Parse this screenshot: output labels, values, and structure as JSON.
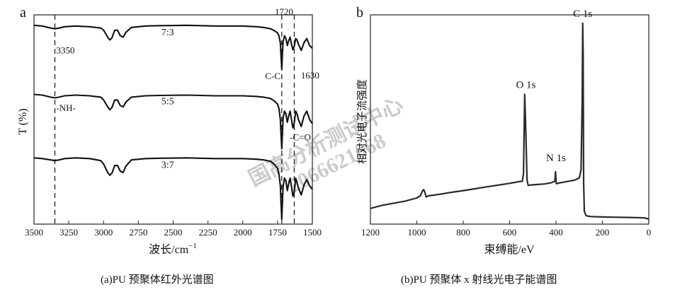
{
  "captions": {
    "a": "(a)PU 预聚体红外光谱图",
    "b": "(b)PU 预聚体 x 射线光电子能谱图"
  },
  "watermark": {
    "line1": "国高分析测试中心",
    "line2": "2066621668"
  },
  "chart_data": [
    {
      "panel": "a",
      "type": "line",
      "xlabel": "波长/cm",
      "xlabel_sup": "−1",
      "ylabel": "T (%)",
      "xlim": [
        3500,
        1500
      ],
      "ylim": [
        0,
        3
      ],
      "x_reversed": true,
      "xticks": [
        3500,
        3250,
        3000,
        2750,
        2500,
        2250,
        2000,
        1750,
        1500
      ],
      "reference_lines": [
        3350,
        1720,
        1630
      ],
      "series": [
        {
          "name": "7:3",
          "label_x": 2540,
          "x": [
            3500,
            3440,
            3380,
            3350,
            3320,
            3280,
            3200,
            3100,
            3020,
            3000,
            2970,
            2955,
            2940,
            2920,
            2900,
            2880,
            2860,
            2840,
            2800,
            2700,
            2600,
            2400,
            2200,
            2000,
            1900,
            1850,
            1800,
            1770,
            1750,
            1740,
            1730,
            1725,
            1720,
            1715,
            1710,
            1700,
            1690,
            1680,
            1670,
            1660,
            1650,
            1640,
            1630,
            1620,
            1610,
            1600,
            1580,
            1560,
            1540,
            1520,
            1500
          ],
          "y": [
            2.85,
            2.84,
            2.81,
            2.8,
            2.81,
            2.83,
            2.84,
            2.83,
            2.81,
            2.78,
            2.68,
            2.64,
            2.67,
            2.78,
            2.78,
            2.7,
            2.68,
            2.75,
            2.82,
            2.84,
            2.845,
            2.85,
            2.84,
            2.84,
            2.83,
            2.82,
            2.8,
            2.77,
            2.74,
            2.7,
            2.6,
            2.4,
            2.22,
            2.45,
            2.62,
            2.7,
            2.66,
            2.56,
            2.63,
            2.68,
            2.58,
            2.5,
            2.55,
            2.66,
            2.64,
            2.58,
            2.49,
            2.6,
            2.66,
            2.56,
            2.52
          ]
        },
        {
          "name": "5:5",
          "label_x": 2540,
          "x": [
            3500,
            3440,
            3380,
            3350,
            3320,
            3280,
            3200,
            3100,
            3020,
            3000,
            2970,
            2955,
            2940,
            2920,
            2900,
            2880,
            2860,
            2840,
            2800,
            2700,
            2600,
            2400,
            2200,
            2000,
            1900,
            1850,
            1800,
            1770,
            1750,
            1740,
            1730,
            1725,
            1720,
            1715,
            1710,
            1700,
            1690,
            1680,
            1670,
            1660,
            1650,
            1640,
            1630,
            1620,
            1610,
            1600,
            1580,
            1560,
            1540,
            1520,
            1500
          ],
          "y": [
            1.86,
            1.85,
            1.82,
            1.81,
            1.82,
            1.84,
            1.85,
            1.84,
            1.82,
            1.78,
            1.68,
            1.64,
            1.67,
            1.78,
            1.78,
            1.7,
            1.68,
            1.75,
            1.82,
            1.84,
            1.845,
            1.85,
            1.84,
            1.84,
            1.83,
            1.82,
            1.8,
            1.76,
            1.72,
            1.66,
            1.5,
            1.28,
            1.08,
            1.3,
            1.52,
            1.62,
            1.58,
            1.46,
            1.55,
            1.62,
            1.5,
            1.38,
            1.45,
            1.62,
            1.58,
            1.5,
            1.4,
            1.55,
            1.62,
            1.5,
            1.44
          ]
        },
        {
          "name": "3:7",
          "label_x": 2540,
          "x": [
            3500,
            3440,
            3380,
            3350,
            3320,
            3280,
            3200,
            3100,
            3020,
            3000,
            2970,
            2955,
            2940,
            2920,
            2900,
            2880,
            2860,
            2840,
            2800,
            2700,
            2600,
            2400,
            2200,
            2000,
            1900,
            1850,
            1800,
            1770,
            1750,
            1740,
            1730,
            1725,
            1720,
            1715,
            1710,
            1700,
            1690,
            1680,
            1670,
            1660,
            1650,
            1640,
            1630,
            1620,
            1610,
            1600,
            1580,
            1560,
            1540,
            1520,
            1500
          ],
          "y": [
            0.95,
            0.94,
            0.92,
            0.91,
            0.92,
            0.94,
            0.95,
            0.94,
            0.91,
            0.86,
            0.74,
            0.7,
            0.73,
            0.84,
            0.84,
            0.76,
            0.74,
            0.83,
            0.92,
            0.94,
            0.945,
            0.95,
            0.94,
            0.94,
            0.93,
            0.92,
            0.9,
            0.85,
            0.8,
            0.72,
            0.55,
            0.3,
            0.07,
            0.32,
            0.54,
            0.66,
            0.62,
            0.48,
            0.58,
            0.66,
            0.54,
            0.4,
            0.46,
            0.66,
            0.6,
            0.52,
            0.42,
            0.56,
            0.64,
            0.55,
            0.5
          ]
        }
      ],
      "annotations": [
        {
          "text": "3350",
          "x": 3340,
          "y": 2.45
        },
        {
          "text": "-NH-",
          "x": 3340,
          "y": 1.62
        },
        {
          "text": "1720",
          "x": 1770,
          "y": 3.0
        },
        {
          "text": "C-C",
          "x": 1840,
          "y": 2.08
        },
        {
          "text": "1630",
          "x": 1582,
          "y": 2.09
        },
        {
          "text": "-C=O",
          "x": 1662,
          "y": 1.2
        }
      ]
    },
    {
      "panel": "b",
      "type": "line",
      "xlabel": "束缚能/eV",
      "ylabel": "相对光电子流强度",
      "xlim": [
        1200,
        0
      ],
      "x_reversed": true,
      "ylim": [
        0,
        100
      ],
      "xticks": [
        1200,
        1000,
        800,
        600,
        400,
        200,
        0
      ],
      "series": [
        {
          "name": "",
          "x": [
            1200,
            1150,
            1100,
            1050,
            1000,
            985,
            975,
            970,
            965,
            960,
            950,
            900,
            850,
            800,
            750,
            700,
            650,
            600,
            560,
            545,
            540,
            535,
            530,
            525,
            520,
            500,
            450,
            420,
            405,
            402,
            399,
            396,
            390,
            350,
            320,
            300,
            292,
            287,
            285,
            283,
            281,
            278,
            270,
            250,
            200,
            150,
            100,
            50,
            20,
            0
          ],
          "y": [
            7.5,
            9,
            10,
            11,
            12.5,
            13.5,
            16,
            16.5,
            15,
            13,
            13.5,
            14.3,
            15.2,
            16.0,
            16.9,
            17.8,
            18.6,
            19.5,
            20.3,
            20.5,
            24,
            62,
            44,
            21,
            18.5,
            18.8,
            19.2,
            19.8,
            20.5,
            25,
            19.5,
            19.3,
            19.6,
            20.4,
            21,
            22,
            26,
            60,
            96,
            82,
            20,
            6,
            4,
            3.6,
            3.4,
            3.3,
            3.2,
            3.1,
            3,
            2.4
          ]
        }
      ],
      "annotations": [
        {
          "text": "C 1s",
          "x": 285,
          "y": 99
        },
        {
          "text": "O 1s",
          "x": 530,
          "y": 65
        },
        {
          "text": "N 1s",
          "x": 400,
          "y": 30
        }
      ]
    }
  ],
  "panel_labels": [
    "a",
    "b"
  ]
}
